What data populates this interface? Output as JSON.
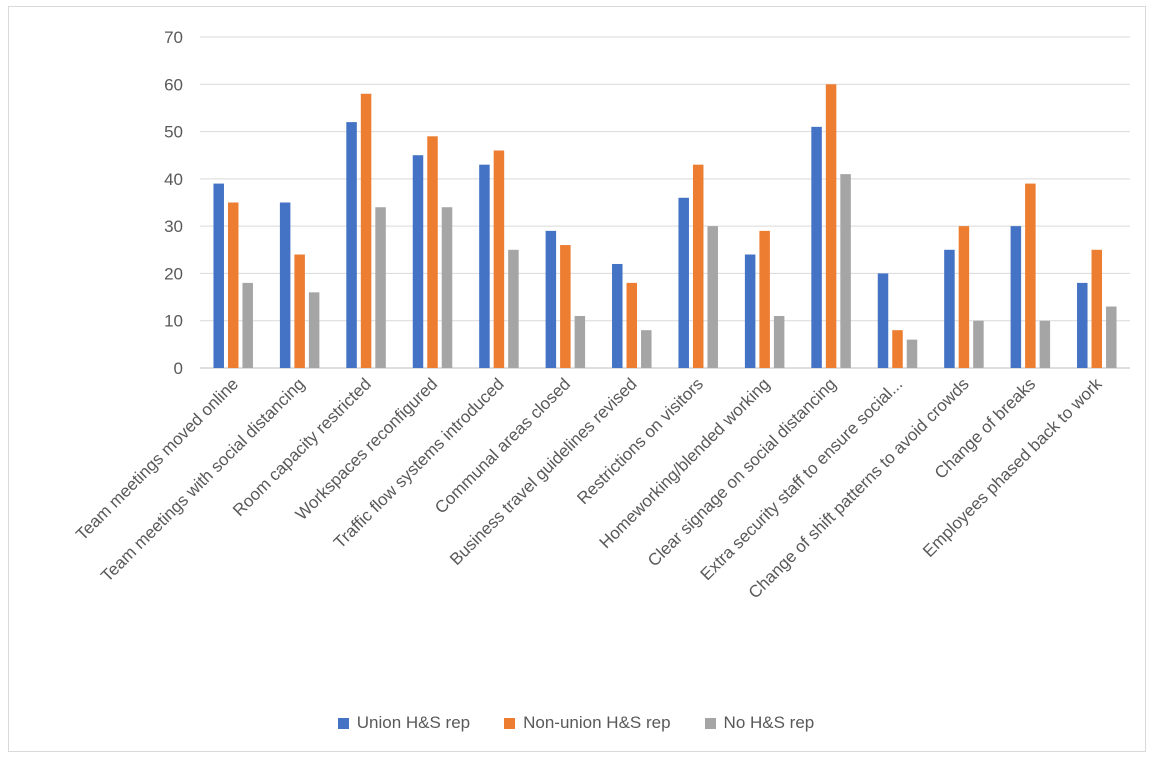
{
  "chart_data": {
    "type": "bar",
    "title": "",
    "xlabel": "",
    "ylabel": "",
    "ylim": [
      0,
      70
    ],
    "yticks": [
      0,
      10,
      20,
      30,
      40,
      50,
      60,
      70
    ],
    "grid": true,
    "legend_position": "bottom",
    "categories": [
      "Team meetings moved online",
      "Team meetings with social distancing",
      "Room capacity restricted",
      "Workspaces reconfigured",
      "Traffic flow systems introduced",
      "Communal areas closed",
      "Business travel guidelines revised",
      "Restrictions on visitors",
      "Homeworking/blended working",
      "Clear signage on social distancing",
      "Extra security staff to ensure social...",
      "Change of shift patterns to avoid crowds",
      "Change of breaks",
      "Employees phased back to work"
    ],
    "series": [
      {
        "name": "Union H&S rep",
        "color": "#4472c4",
        "values": [
          39,
          35,
          52,
          45,
          43,
          29,
          22,
          36,
          24,
          51,
          20,
          25,
          30,
          18
        ]
      },
      {
        "name": "Non-union H&S rep",
        "color": "#ed7d31",
        "values": [
          35,
          24,
          58,
          49,
          46,
          26,
          18,
          43,
          29,
          60,
          8,
          30,
          39,
          25
        ]
      },
      {
        "name": "No H&S rep",
        "color": "#a5a5a5",
        "values": [
          18,
          16,
          34,
          34,
          25,
          11,
          8,
          30,
          11,
          41,
          6,
          10,
          10,
          13
        ]
      }
    ]
  }
}
